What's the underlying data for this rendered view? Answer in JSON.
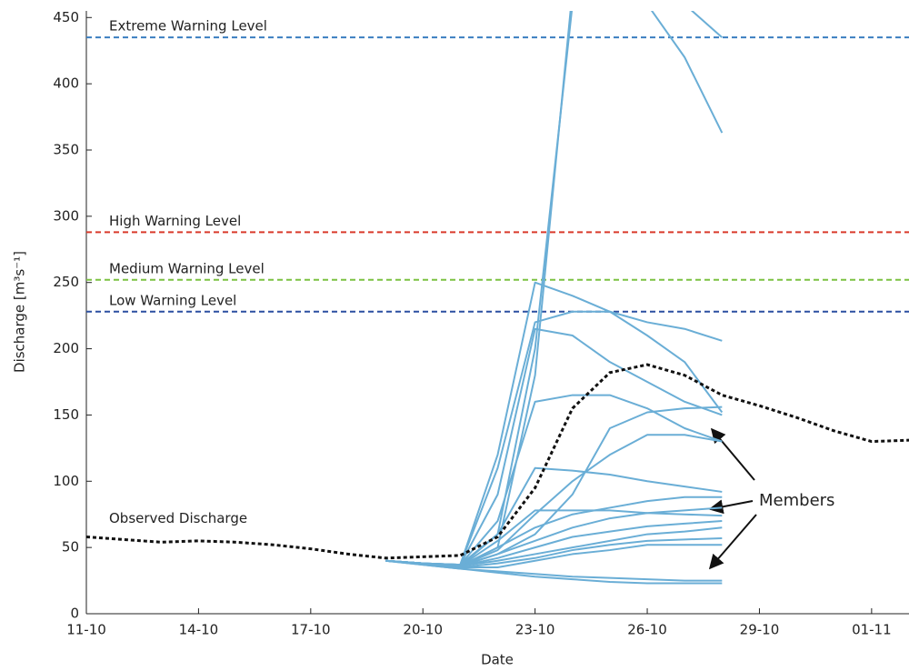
{
  "chart_data": {
    "type": "line",
    "x_label": "Date",
    "y_label": "Discharge [m³s⁻¹]",
    "xlim": [
      "11-10",
      "02-11"
    ],
    "xticks": [
      "11-10",
      "14-10",
      "17-10",
      "20-10",
      "23-10",
      "26-10",
      "29-10",
      "01-11"
    ],
    "ylim": [
      0,
      455
    ],
    "yticks": [
      0,
      50,
      100,
      150,
      200,
      250,
      300,
      350,
      400,
      450
    ],
    "levels": [
      {
        "label": "Extreme Warning Level",
        "value": 435,
        "color": "#3a7ec0"
      },
      {
        "label": "High Warning Level",
        "value": 288,
        "color": "#d93a2b"
      },
      {
        "label": "Medium Warning Level",
        "value": 252,
        "color": "#7cc242"
      },
      {
        "label": "Low Warning Level",
        "value": 228,
        "color": "#2b4fa0"
      }
    ],
    "series": [
      {
        "name": "Observed Discharge",
        "color": "#111111",
        "x": [
          "11-10",
          "12-10",
          "13-10",
          "14-10",
          "15-10",
          "16-10",
          "17-10",
          "18-10",
          "19-10",
          "20-10",
          "21-10",
          "22-10",
          "23-10",
          "24-10",
          "25-10",
          "26-10",
          "27-10",
          "28-10",
          "29-10",
          "30-10",
          "31-10",
          "01-11",
          "02-11"
        ],
        "values": [
          58,
          56,
          54,
          55,
          54,
          52,
          49,
          45,
          42,
          43,
          44,
          58,
          95,
          155,
          182,
          188,
          180,
          165,
          157,
          148,
          138,
          130,
          131
        ]
      }
    ],
    "members": {
      "label": "Members",
      "color": "#6aaed6",
      "x": [
        "19-10",
        "20-10",
        "21-10",
        "22-10",
        "23-10",
        "24-10",
        "25-10",
        "26-10",
        "27-10",
        "28-10"
      ],
      "values": [
        [
          40,
          38,
          36,
          60,
          200,
          460,
          470,
          470,
          460,
          435
        ],
        [
          40,
          38,
          36,
          50,
          180,
          470,
          480,
          460,
          420,
          363
        ],
        [
          40,
          38,
          37,
          120,
          250,
          240,
          228,
          220,
          215,
          206
        ],
        [
          40,
          38,
          37,
          110,
          220,
          228,
          228,
          210,
          190,
          152
        ],
        [
          40,
          38,
          37,
          90,
          215,
          210,
          190,
          175,
          160,
          150
        ],
        [
          40,
          38,
          37,
          70,
          160,
          165,
          165,
          155,
          140,
          130
        ],
        [
          40,
          38,
          36,
          48,
          75,
          100,
          120,
          135,
          135,
          130
        ],
        [
          40,
          38,
          36,
          45,
          60,
          90,
          140,
          152,
          155,
          156
        ],
        [
          40,
          38,
          37,
          60,
          110,
          108,
          105,
          100,
          96,
          92
        ],
        [
          40,
          38,
          36,
          50,
          65,
          75,
          80,
          85,
          88,
          88
        ],
        [
          40,
          38,
          36,
          45,
          55,
          65,
          72,
          76,
          78,
          80
        ],
        [
          40,
          38,
          36,
          42,
          50,
          58,
          62,
          66,
          68,
          70
        ],
        [
          40,
          38,
          36,
          40,
          45,
          50,
          55,
          60,
          62,
          65
        ],
        [
          40,
          38,
          35,
          38,
          42,
          48,
          52,
          55,
          56,
          57
        ],
        [
          40,
          38,
          35,
          35,
          40,
          45,
          48,
          52,
          52,
          52
        ],
        [
          40,
          37,
          34,
          32,
          30,
          28,
          27,
          26,
          25,
          25
        ],
        [
          40,
          37,
          34,
          31,
          28,
          26,
          24,
          23,
          23,
          23
        ],
        [
          40,
          38,
          36,
          55,
          78,
          78,
          78,
          76,
          75,
          74
        ]
      ]
    }
  }
}
